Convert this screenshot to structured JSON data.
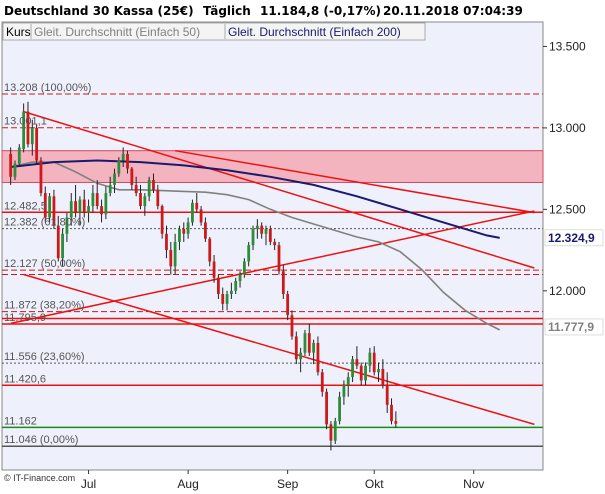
{
  "header": {
    "instrument": "Deutschland 30 Kassa (25€)",
    "interval": "Täglich",
    "quote": "11.184,8 (-0,17%)",
    "datetime": "20.11.2018 07:04:39"
  },
  "legend": {
    "items": [
      {
        "label": "Kurs",
        "color": "#000000"
      },
      {
        "label": "Gleit. Durchschnitt (Einfach 50)",
        "color": "#808080"
      },
      {
        "label": "Gleit. Durchschnitt (Einfach 200)",
        "color": "#1a1a6e"
      }
    ]
  },
  "credit": "© IT-Finance.com",
  "colors": {
    "background": "#eef1fb",
    "up": "#2e8b3a",
    "down": "#cc1a1a",
    "ma50": "#808080",
    "ma200": "#1a1a6e",
    "trend": "#ee1111",
    "support": "#1a8a1a",
    "zone": "#f3b3bf"
  },
  "chart_data": {
    "type": "candlestick",
    "ylim": [
      10900,
      13650
    ],
    "y_ticks": [
      12000,
      12500,
      13000,
      13500
    ],
    "y_tick_labels": [
      "12.000",
      "12.500",
      "13.000",
      "13.500"
    ],
    "x_axis_labels": [
      {
        "label": "Jul",
        "day": 18
      },
      {
        "label": "Aug",
        "day": 41
      },
      {
        "label": "Sep",
        "day": 64
      },
      {
        "label": "Okt",
        "day": 84
      },
      {
        "label": "Nov",
        "day": 107
      }
    ],
    "last_values": [
      {
        "label": "12.324,9",
        "value": 12325,
        "color": "#1a1a6e"
      },
      {
        "label": "11.777,9",
        "value": 11778,
        "color": "#808080"
      }
    ],
    "levels": [
      {
        "label": "13.208 (100,00%)",
        "value": 13208,
        "style": "dash",
        "color": "#cc1a1a"
      },
      {
        "label": "13.001,1",
        "value": 13001,
        "style": "dash",
        "color": "#cc1a1a"
      },
      {
        "label": "12.482,5",
        "value": 12482,
        "style": "solid",
        "color": "#ee1111"
      },
      {
        "label": "12.382 (61,80%)",
        "value": 12382,
        "style": "dotted",
        "color": "#555555"
      },
      {
        "label": "12.127 (50,00%)",
        "value": 12127,
        "style": "dash",
        "color": "#cc1a1a"
      },
      {
        "label": "11.872 (38,20%)",
        "value": 11872,
        "style": "dash",
        "color": "#cc1a1a"
      },
      {
        "label": "11.795,9",
        "value": 11796,
        "style": "solid",
        "color": "#ee1111"
      },
      {
        "label": "11.556 (23,60%)",
        "value": 11556,
        "style": "dotted",
        "color": "#555555"
      },
      {
        "label": "11.420,6",
        "value": 11420,
        "style": "solid",
        "color": "#ee1111"
      },
      {
        "label": "11.162",
        "value": 11162,
        "style": "solid",
        "color": "#1a8a1a"
      },
      {
        "label": "11.046 (0,00%)",
        "value": 11046,
        "style": "solid",
        "color": "#555555"
      }
    ],
    "unlabeled_lines": [
      {
        "value": 12100,
        "style": "dash",
        "color": "#cc1a1a"
      },
      {
        "value": 11830,
        "style": "solid",
        "color": "#ee1111"
      }
    ],
    "zones": [
      {
        "from": 12665,
        "to": 12860
      }
    ],
    "trendlines": [
      {
        "from": [
          3,
          13100
        ],
        "to": [
          121,
          12140
        ]
      },
      {
        "from": [
          38,
          12860
        ],
        "to": [
          121,
          12480
        ]
      },
      {
        "from": [
          3,
          12100
        ],
        "to": [
          121,
          11180
        ]
      },
      {
        "from": [
          0,
          11800
        ],
        "to": [
          121,
          12490
        ]
      }
    ],
    "series": [
      {
        "name": "Gleit. Durchschnitt (Einfach 50)",
        "values": [
          [
            0,
            12760
          ],
          [
            5,
            12790
          ],
          [
            10,
            12790
          ],
          [
            15,
            12730
          ],
          [
            20,
            12660
          ],
          [
            25,
            12620
          ],
          [
            30,
            12620
          ],
          [
            35,
            12615
          ],
          [
            40,
            12610
          ],
          [
            45,
            12605
          ],
          [
            50,
            12590
          ],
          [
            55,
            12560
          ],
          [
            60,
            12500
          ],
          [
            65,
            12450
          ],
          [
            70,
            12410
          ],
          [
            75,
            12370
          ],
          [
            80,
            12330
          ],
          [
            85,
            12300
          ],
          [
            90,
            12240
          ],
          [
            95,
            12130
          ],
          [
            100,
            11990
          ],
          [
            105,
            11880
          ],
          [
            110,
            11800
          ],
          [
            113,
            11760
          ]
        ]
      },
      {
        "name": "Gleit. Durchschnitt (Einfach 200)",
        "values": [
          [
            0,
            12760
          ],
          [
            10,
            12790
          ],
          [
            20,
            12800
          ],
          [
            30,
            12790
          ],
          [
            40,
            12770
          ],
          [
            50,
            12740
          ],
          [
            60,
            12700
          ],
          [
            70,
            12650
          ],
          [
            80,
            12580
          ],
          [
            90,
            12500
          ],
          [
            100,
            12420
          ],
          [
            110,
            12340
          ],
          [
            113,
            12325
          ]
        ]
      }
    ],
    "candles": [
      [
        0,
        12840,
        12880,
        12650,
        12700
      ],
      [
        1,
        12700,
        12800,
        12680,
        12780
      ],
      [
        2,
        12780,
        12900,
        12760,
        12880
      ],
      [
        3,
        12870,
        13150,
        12850,
        13100
      ],
      [
        4,
        13100,
        13160,
        12880,
        12900
      ],
      [
        5,
        12900,
        13050,
        12830,
        13000
      ],
      [
        6,
        13000,
        13020,
        12780,
        12800
      ],
      [
        7,
        12800,
        12820,
        12580,
        12600
      ],
      [
        8,
        12600,
        12640,
        12420,
        12450
      ],
      [
        9,
        12450,
        12600,
        12420,
        12580
      ],
      [
        10,
        12580,
        12620,
        12380,
        12400
      ],
      [
        11,
        12400,
        12460,
        12180,
        12200
      ],
      [
        12,
        12200,
        12380,
        12150,
        12350
      ],
      [
        13,
        12350,
        12480,
        12300,
        12450
      ],
      [
        14,
        12450,
        12600,
        12400,
        12550
      ],
      [
        15,
        12550,
        12650,
        12450,
        12480
      ],
      [
        16,
        12480,
        12580,
        12400,
        12560
      ],
      [
        17,
        12560,
        12620,
        12450,
        12480
      ],
      [
        18,
        12480,
        12560,
        12420,
        12520
      ],
      [
        19,
        12520,
        12650,
        12480,
        12600
      ],
      [
        20,
        12600,
        12680,
        12500,
        12520
      ],
      [
        21,
        12520,
        12560,
        12420,
        12470
      ],
      [
        22,
        12470,
        12640,
        12440,
        12600
      ],
      [
        23,
        12600,
        12700,
        12580,
        12650
      ],
      [
        24,
        12650,
        12750,
        12600,
        12720
      ],
      [
        25,
        12720,
        12820,
        12700,
        12800
      ],
      [
        26,
        12800,
        12880,
        12760,
        12840
      ],
      [
        27,
        12840,
        12860,
        12720,
        12750
      ],
      [
        28,
        12750,
        12760,
        12620,
        12650
      ],
      [
        29,
        12650,
        12700,
        12580,
        12600
      ],
      [
        30,
        12600,
        12650,
        12500,
        12520
      ],
      [
        31,
        12520,
        12600,
        12460,
        12580
      ],
      [
        32,
        12580,
        12700,
        12550,
        12680
      ],
      [
        33,
        12680,
        12720,
        12600,
        12620
      ],
      [
        34,
        12620,
        12650,
        12500,
        12520
      ],
      [
        35,
        12520,
        12530,
        12320,
        12350
      ],
      [
        36,
        12350,
        12400,
        12200,
        12250
      ],
      [
        37,
        12250,
        12300,
        12100,
        12150
      ],
      [
        38,
        12150,
        12350,
        12100,
        12300
      ],
      [
        39,
        12300,
        12400,
        12250,
        12380
      ],
      [
        40,
        12380,
        12420,
        12300,
        12350
      ],
      [
        41,
        12350,
        12450,
        12320,
        12420
      ],
      [
        42,
        12420,
        12560,
        12400,
        12540
      ],
      [
        43,
        12540,
        12600,
        12480,
        12500
      ],
      [
        44,
        12500,
        12520,
        12400,
        12420
      ],
      [
        45,
        12420,
        12450,
        12300,
        12320
      ],
      [
        46,
        12320,
        12330,
        12150,
        12180
      ],
      [
        47,
        12180,
        12220,
        12050,
        12080
      ],
      [
        48,
        12080,
        12100,
        11950,
        11980
      ],
      [
        49,
        11980,
        12020,
        11880,
        11920
      ],
      [
        50,
        11920,
        12000,
        11880,
        11980
      ],
      [
        51,
        11980,
        12050,
        11950,
        12000
      ],
      [
        52,
        12000,
        12080,
        11980,
        12060
      ],
      [
        53,
        12060,
        12120,
        12020,
        12100
      ],
      [
        54,
        12100,
        12200,
        12080,
        12180
      ],
      [
        55,
        12180,
        12300,
        12150,
        12280
      ],
      [
        56,
        12280,
        12400,
        12250,
        12380
      ],
      [
        57,
        12380,
        12440,
        12320,
        12400
      ],
      [
        58,
        12400,
        12420,
        12320,
        12350
      ],
      [
        59,
        12350,
        12400,
        12280,
        12380
      ],
      [
        60,
        12380,
        12400,
        12280,
        12300
      ],
      [
        61,
        12300,
        12320,
        12250,
        12280
      ],
      [
        62,
        12280,
        12300,
        12100,
        12120
      ],
      [
        63,
        12120,
        12160,
        11950,
        11980
      ],
      [
        64,
        11980,
        12000,
        11820,
        11850
      ],
      [
        65,
        11850,
        11880,
        11700,
        11720
      ],
      [
        66,
        11720,
        11750,
        11550,
        11580
      ],
      [
        67,
        11580,
        11650,
        11500,
        11620
      ],
      [
        68,
        11620,
        11760,
        11600,
        11740
      ],
      [
        69,
        11740,
        11800,
        11600,
        11620
      ],
      [
        70,
        11620,
        11700,
        11550,
        11680
      ],
      [
        71,
        11680,
        11720,
        11480,
        11500
      ],
      [
        72,
        11500,
        11520,
        11350,
        11380
      ],
      [
        73,
        11380,
        11400,
        11150,
        11180
      ],
      [
        74,
        11180,
        11200,
        11020,
        11080
      ],
      [
        75,
        11080,
        11220,
        11060,
        11200
      ],
      [
        76,
        11200,
        11380,
        11180,
        11350
      ],
      [
        77,
        11350,
        11450,
        11300,
        11420
      ],
      [
        78,
        11420,
        11500,
        11350,
        11470
      ],
      [
        79,
        11470,
        11600,
        11440,
        11580
      ],
      [
        80,
        11580,
        11660,
        11520,
        11540
      ],
      [
        81,
        11540,
        11560,
        11420,
        11450
      ],
      [
        82,
        11450,
        11560,
        11420,
        11540
      ],
      [
        83,
        11540,
        11650,
        11500,
        11620
      ],
      [
        84,
        11620,
        11660,
        11480,
        11500
      ],
      [
        85,
        11500,
        11560,
        11440,
        11520
      ],
      [
        86,
        11520,
        11580,
        11400,
        11420
      ],
      [
        87,
        11420,
        11500,
        11250,
        11300
      ],
      [
        88,
        11300,
        11340,
        11180,
        11200
      ],
      [
        89,
        11200,
        11260,
        11160,
        11184
      ]
    ]
  }
}
